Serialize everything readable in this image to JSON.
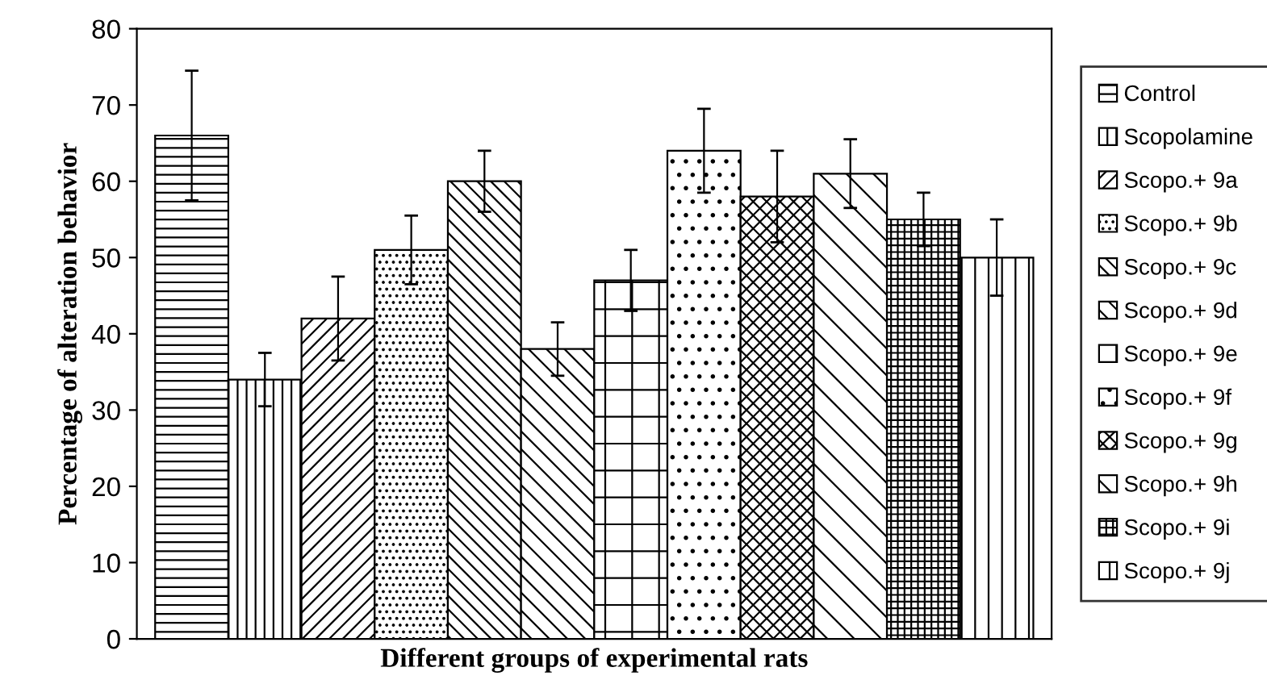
{
  "chart_data": {
    "type": "bar",
    "xlabel": "Different groups of experimental rats",
    "ylabel": "Percentage of alteration behavior",
    "categories": [
      null,
      null,
      null,
      null,
      null,
      null,
      null,
      null,
      null,
      null,
      null,
      null
    ],
    "series": [
      {
        "name": "Control",
        "color": "#000000",
        "values": [
          66,
          null,
          null,
          null,
          null,
          null,
          null,
          null,
          null,
          null,
          null,
          null
        ],
        "errors": [
          8.5,
          null,
          null,
          null,
          null,
          null,
          null,
          null,
          null,
          null,
          null,
          null
        ]
      },
      {
        "name": "Scopolamine",
        "color": "#000000",
        "values": [
          null,
          34,
          null,
          null,
          null,
          null,
          null,
          null,
          null,
          null,
          null,
          null
        ],
        "errors": [
          null,
          3.5,
          null,
          null,
          null,
          null,
          null,
          null,
          null,
          null,
          null,
          null
        ]
      },
      {
        "name": "Scopo.+ 9a",
        "color": "#000000",
        "values": [
          null,
          null,
          42,
          null,
          null,
          null,
          null,
          null,
          null,
          null,
          null,
          null
        ],
        "errors": [
          null,
          null,
          5.5,
          null,
          null,
          null,
          null,
          null,
          null,
          null,
          null,
          null
        ]
      },
      {
        "name": "Scopo.+ 9b",
        "color": "#000000",
        "values": [
          null,
          null,
          null,
          51,
          null,
          null,
          null,
          null,
          null,
          null,
          null,
          null
        ],
        "errors": [
          null,
          null,
          null,
          4.5,
          null,
          null,
          null,
          null,
          null,
          null,
          null,
          null
        ]
      },
      {
        "name": "Scopo.+ 9c",
        "color": "#000000",
        "values": [
          null,
          null,
          null,
          null,
          60,
          null,
          null,
          null,
          null,
          null,
          null,
          null
        ],
        "errors": [
          null,
          null,
          null,
          null,
          4,
          null,
          null,
          null,
          null,
          null,
          null,
          null
        ]
      },
      {
        "name": "Scopo.+ 9d",
        "color": "#000000",
        "values": [
          null,
          null,
          null,
          null,
          null,
          38,
          null,
          null,
          null,
          null,
          null,
          null
        ],
        "errors": [
          null,
          null,
          null,
          null,
          null,
          3.5,
          null,
          null,
          null,
          null,
          null,
          null
        ]
      },
      {
        "name": "Scopo.+ 9e",
        "color": "#000000",
        "values": [
          null,
          null,
          null,
          null,
          null,
          null,
          47,
          null,
          null,
          null,
          null,
          null
        ],
        "errors": [
          null,
          null,
          null,
          null,
          null,
          null,
          4,
          null,
          null,
          null,
          null,
          null
        ]
      },
      {
        "name": "Scopo.+ 9f",
        "color": "#000000",
        "values": [
          null,
          null,
          null,
          null,
          null,
          null,
          null,
          64,
          null,
          null,
          null,
          null
        ],
        "errors": [
          null,
          null,
          null,
          null,
          null,
          null,
          null,
          5.5,
          null,
          null,
          null,
          null
        ]
      },
      {
        "name": "Scopo.+ 9g",
        "color": "#000000",
        "values": [
          null,
          null,
          null,
          null,
          null,
          null,
          null,
          null,
          58,
          null,
          null,
          null
        ],
        "errors": [
          null,
          null,
          null,
          null,
          null,
          null,
          null,
          null,
          6,
          null,
          null,
          null
        ]
      },
      {
        "name": "Scopo.+ 9h",
        "color": "#000000",
        "values": [
          null,
          null,
          null,
          null,
          null,
          null,
          null,
          null,
          null,
          61,
          null,
          null
        ],
        "errors": [
          null,
          null,
          null,
          null,
          null,
          null,
          null,
          null,
          null,
          4.5,
          null,
          null
        ]
      },
      {
        "name": "Scopo.+ 9i",
        "color": "#000000",
        "values": [
          null,
          null,
          null,
          null,
          null,
          null,
          null,
          null,
          null,
          null,
          55,
          null
        ],
        "errors": [
          null,
          null,
          null,
          null,
          null,
          null,
          null,
          null,
          null,
          null,
          3.5,
          null
        ]
      },
      {
        "name": "Scopo.+ 9j",
        "color": "#000000",
        "values": [
          null,
          null,
          null,
          null,
          null,
          null,
          null,
          null,
          null,
          null,
          null,
          50
        ],
        "errors": [
          null,
          null,
          null,
          null,
          null,
          null,
          null,
          null,
          null,
          null,
          null,
          5
        ]
      }
    ],
    "ylim": [
      0,
      80
    ],
    "yticks": [
      0,
      10,
      20,
      30,
      40,
      50,
      60,
      70,
      80
    ],
    "grid": false,
    "legend": "right",
    "tick_labels": "y"
  }
}
